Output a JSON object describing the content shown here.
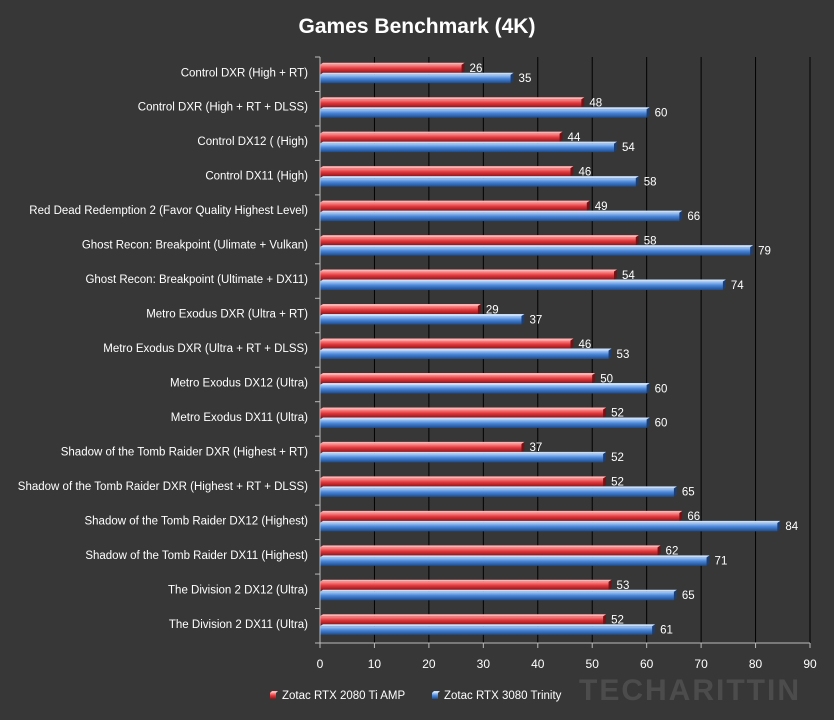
{
  "chart_data": {
    "type": "bar",
    "orientation": "horizontal",
    "title": "Games Benchmark (4K)",
    "categories": [
      "Control DXR (High + RT)",
      "Control DXR (High + RT + DLSS)",
      "Control DX12 ( (High)",
      "Control DX11 (High)",
      "Red Dead Redemption 2 (Favor Quality Highest Level)",
      "Ghost Recon: Breakpoint (Ulimate  + Vulkan)",
      "Ghost Recon: Breakpoint (Ultimate  + DX11)",
      "Metro Exodus DXR (Ultra + RT)",
      "Metro Exodus DXR (Ultra + RT + DLSS)",
      "Metro Exodus DX12 (Ultra)",
      "Metro Exodus DX11 (Ultra)",
      "Shadow of the Tomb  Raider DXR (Highest + RT)",
      "Shadow of the Tomb  Raider DXR (Highest + RT + DLSS)",
      "Shadow of the Tomb  Raider DX12 (Highest)",
      "Shadow of the Tomb  Raider DX11 (Highest)",
      "The Division  2 DX12 (Ultra)",
      "The Division  2 DX11 (Ultra)"
    ],
    "series": [
      {
        "name": "Zotac RTX 2080 Ti AMP",
        "color": "#e0383c",
        "values": [
          26,
          48,
          44,
          46,
          49,
          58,
          54,
          29,
          46,
          50,
          52,
          37,
          52,
          66,
          62,
          53,
          52
        ]
      },
      {
        "name": "Zotac RTX 3080 Trinity",
        "color": "#4a86d8",
        "values": [
          35,
          60,
          54,
          58,
          66,
          79,
          74,
          37,
          53,
          60,
          60,
          52,
          65,
          84,
          71,
          65,
          61
        ]
      }
    ],
    "xlim": [
      0,
      90
    ],
    "xticks": [
      0,
      10,
      20,
      30,
      40,
      50,
      60,
      70,
      80,
      90
    ],
    "grid": true,
    "legend_position": "bottom-center"
  },
  "colors": {
    "background": "#373737",
    "gridline": "#000000",
    "axis": "#bbbbbb"
  },
  "watermark": "TECHARITTIN"
}
